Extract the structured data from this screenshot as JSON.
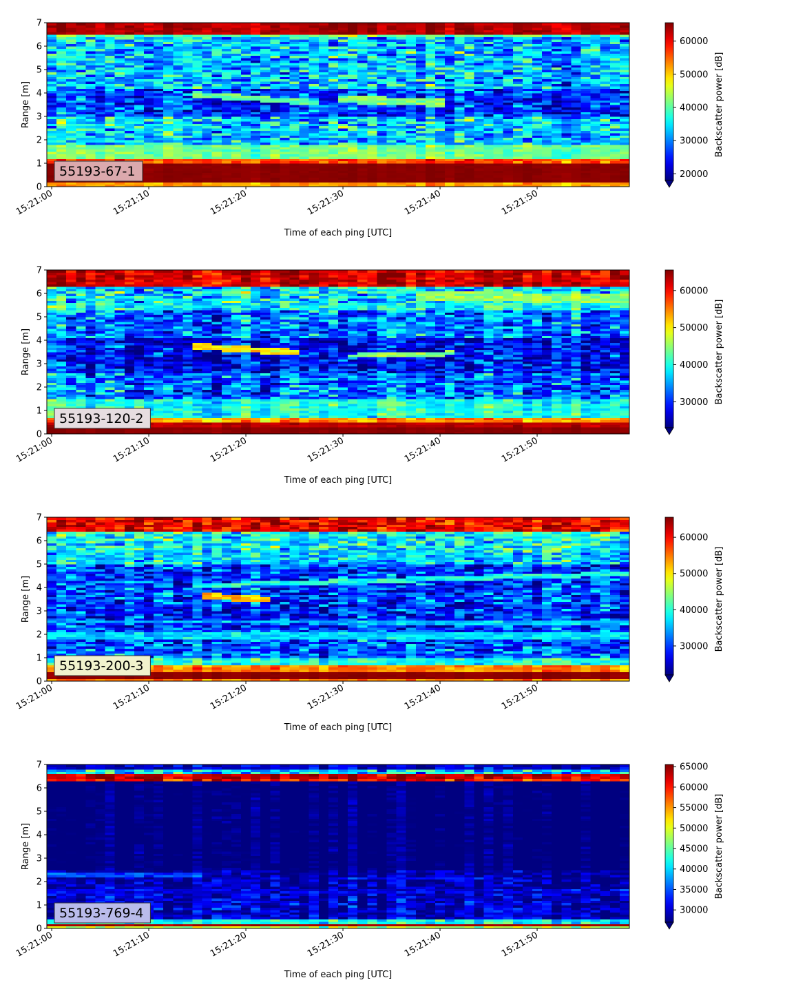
{
  "chart_data": [
    {
      "type": "heatmap",
      "label": "55193-67-1",
      "label_color": "#dba9ad",
      "xlabel": "Time of each ping [UTC]",
      "ylabel": "Range [m]",
      "cbar_label": "Backscatter power [dB]",
      "x_ticks": [
        "15:21:00",
        "15:21:10",
        "15:21:20",
        "15:21:30",
        "15:21:40",
        "15:21:50"
      ],
      "x_range_seconds": [
        -0.5,
        59.5
      ],
      "y_ticks": [
        "0",
        "1",
        "2",
        "3",
        "4",
        "5",
        "6",
        "7"
      ],
      "ylim": [
        0,
        7
      ],
      "cbar_ticks": [
        "20000",
        "30000",
        "40000",
        "50000",
        "60000"
      ],
      "vlim": [
        18000,
        65535
      ],
      "bands": [
        {
          "y": [
            0.0,
            0.2
          ],
          "v": 52000,
          "n": 1500
        },
        {
          "y": [
            0.2,
            1.0
          ],
          "v": 65000,
          "n": 300
        },
        {
          "y": [
            1.0,
            1.2
          ],
          "v": 56000,
          "n": 3000
        },
        {
          "y": [
            1.2,
            1.8
          ],
          "v": 41000,
          "n": 2500
        },
        {
          "y": [
            1.8,
            2.3
          ],
          "v": 33000,
          "n": 6000
        },
        {
          "y": [
            2.3,
            3.0
          ],
          "v": 34000,
          "n": 7000
        },
        {
          "y": [
            3.0,
            4.2
          ],
          "v": 26000,
          "n": 6000
        },
        {
          "y": [
            4.2,
            6.4
          ],
          "v": 33000,
          "n": 7000
        },
        {
          "y": [
            6.4,
            6.55
          ],
          "v": 40000,
          "n": 5000
        },
        {
          "y": [
            6.55,
            7.0
          ],
          "v": 63000,
          "n": 1500
        }
      ],
      "features": [
        {
          "t": [
            15,
            27
          ],
          "y": [
            3.95,
            3.6
          ],
          "w": 0.25,
          "v": 41000
        },
        {
          "t": [
            30,
            40
          ],
          "y": [
            3.75,
            3.6
          ],
          "w": 0.35,
          "v": 42000
        }
      ]
    },
    {
      "type": "heatmap",
      "label": "55193-120-2",
      "label_color": "#e6dde0",
      "xlabel": "Time of each ping [UTC]",
      "ylabel": "Range [m]",
      "cbar_label": "Backscatter power [dB]",
      "x_ticks": [
        "15:21:00",
        "15:21:10",
        "15:21:20",
        "15:21:30",
        "15:21:40",
        "15:21:50"
      ],
      "x_range_seconds": [
        -0.5,
        59.5
      ],
      "y_ticks": [
        "0",
        "1",
        "2",
        "3",
        "4",
        "5",
        "6",
        "7"
      ],
      "ylim": [
        0,
        7
      ],
      "cbar_ticks": [
        "30000",
        "40000",
        "50000",
        "60000"
      ],
      "vlim": [
        23000,
        65535
      ],
      "bands": [
        {
          "y": [
            0.0,
            0.3
          ],
          "v": 65000,
          "n": 300
        },
        {
          "y": [
            0.3,
            0.55
          ],
          "v": 63000,
          "n": 1000
        },
        {
          "y": [
            0.55,
            0.75
          ],
          "v": 54000,
          "n": 2500
        },
        {
          "y": [
            0.75,
            1.5
          ],
          "v": 40000,
          "n": 3000
        },
        {
          "y": [
            1.5,
            2.6
          ],
          "v": 33000,
          "n": 6000
        },
        {
          "y": [
            2.6,
            4.1
          ],
          "v": 28000,
          "n": 5500
        },
        {
          "y": [
            4.1,
            5.3
          ],
          "v": 33000,
          "n": 6000
        },
        {
          "y": [
            5.3,
            5.6
          ],
          "v": 39000,
          "n": 4000
        },
        {
          "y": [
            5.6,
            6.35
          ],
          "v": 38000,
          "n": 6000
        },
        {
          "y": [
            6.35,
            7.0
          ],
          "v": 62000,
          "n": 3000
        }
      ],
      "features": [
        {
          "t": [
            15,
            25
          ],
          "y": [
            3.75,
            3.5
          ],
          "w": 0.25,
          "v": 50000
        },
        {
          "t": [
            31,
            41
          ],
          "y": [
            3.35,
            3.45
          ],
          "w": 0.2,
          "v": 45000
        },
        {
          "t": [
            38,
            59
          ],
          "y": [
            5.9,
            5.8
          ],
          "w": 0.4,
          "v": 45000
        }
      ]
    },
    {
      "type": "heatmap",
      "label": "55193-200-3",
      "label_color": "#f1f2cc",
      "xlabel": "Time of each ping [UTC]",
      "ylabel": "Range [m]",
      "cbar_label": "Backscatter power [dB]",
      "x_ticks": [
        "15:21:00",
        "15:21:10",
        "15:21:20",
        "15:21:30",
        "15:21:40",
        "15:21:50"
      ],
      "x_range_seconds": [
        -0.5,
        59.5
      ],
      "y_ticks": [
        "0",
        "1",
        "2",
        "3",
        "4",
        "5",
        "6",
        "7"
      ],
      "ylim": [
        0,
        7
      ],
      "cbar_ticks": [
        "30000",
        "40000",
        "50000",
        "60000"
      ],
      "vlim": [
        22000,
        65535
      ],
      "bands": [
        {
          "y": [
            0.0,
            0.12
          ],
          "v": 55000,
          "n": 2000
        },
        {
          "y": [
            0.12,
            0.45
          ],
          "v": 65000,
          "n": 300
        },
        {
          "y": [
            0.45,
            0.75
          ],
          "v": 55000,
          "n": 2000
        },
        {
          "y": [
            0.75,
            1.0
          ],
          "v": 40000,
          "n": 3000
        },
        {
          "y": [
            1.0,
            2.3
          ],
          "v": 31000,
          "n": 6000
        },
        {
          "y": [
            2.3,
            3.3
          ],
          "v": 29000,
          "n": 6000
        },
        {
          "y": [
            3.3,
            5.0
          ],
          "v": 30000,
          "n": 6000
        },
        {
          "y": [
            5.0,
            5.6
          ],
          "v": 37000,
          "n": 5000
        },
        {
          "y": [
            5.6,
            6.4
          ],
          "v": 39000,
          "n": 6000
        },
        {
          "y": [
            6.4,
            7.0
          ],
          "v": 61000,
          "n": 4000
        }
      ],
      "features": [
        {
          "t": [
            0,
            59
          ],
          "y": [
            1.95,
            1.95
          ],
          "w": 0.2,
          "v": 37000
        },
        {
          "t": [
            0,
            59
          ],
          "y": [
            2.55,
            2.5
          ],
          "w": 0.15,
          "v": 36000
        },
        {
          "t": [
            16,
            22
          ],
          "y": [
            3.65,
            3.5
          ],
          "w": 0.25,
          "v": 52000
        },
        {
          "t": [
            15,
            59
          ],
          "y": [
            4.1,
            4.6
          ],
          "w": 0.2,
          "v": 40000
        }
      ]
    },
    {
      "type": "heatmap",
      "label": "55193-769-4",
      "label_color": "#b9bbeb",
      "xlabel": "Time of each ping [UTC]",
      "ylabel": "Range [m]",
      "cbar_label": "Backscatter power [dB]",
      "x_ticks": [
        "15:21:00",
        "15:21:10",
        "15:21:20",
        "15:21:30",
        "15:21:40",
        "15:21:50"
      ],
      "x_range_seconds": [
        -0.5,
        59.5
      ],
      "y_ticks": [
        "0",
        "1",
        "2",
        "3",
        "4",
        "5",
        "6",
        "7"
      ],
      "ylim": [
        0,
        7
      ],
      "cbar_ticks": [
        "30000",
        "35000",
        "40000",
        "45000",
        "50000",
        "55000",
        "60000",
        "65000"
      ],
      "vlim": [
        27000,
        65535
      ],
      "bands": [
        {
          "y": [
            0.0,
            0.12
          ],
          "v": 48000,
          "n": 2000
        },
        {
          "y": [
            0.12,
            0.25
          ],
          "v": 64000,
          "n": 500
        },
        {
          "y": [
            0.25,
            0.4
          ],
          "v": 42000,
          "n": 3000
        },
        {
          "y": [
            0.4,
            1.5
          ],
          "v": 30000,
          "n": 3500
        },
        {
          "y": [
            1.5,
            2.5
          ],
          "v": 28500,
          "n": 3000
        },
        {
          "y": [
            2.5,
            6.3
          ],
          "v": 26000,
          "n": 1200
        },
        {
          "y": [
            6.3,
            6.45
          ],
          "v": 60000,
          "n": 4000
        },
        {
          "y": [
            6.45,
            6.65
          ],
          "v": 63000,
          "n": 2000
        },
        {
          "y": [
            6.65,
            6.85
          ],
          "v": 40000,
          "n": 6000
        },
        {
          "y": [
            6.85,
            7.0
          ],
          "v": 30000,
          "n": 3000
        }
      ],
      "features": [
        {
          "t": [
            0,
            15
          ],
          "y": [
            2.3,
            2.3
          ],
          "w": 0.12,
          "v": 34000
        },
        {
          "t": [
            30,
            45
          ],
          "y": [
            2.1,
            2.1
          ],
          "w": 0.1,
          "v": 33000
        },
        {
          "t": [
            0,
            59
          ],
          "y": [
            1.6,
            1.6
          ],
          "w": 0.2,
          "v": 31000
        }
      ]
    }
  ]
}
